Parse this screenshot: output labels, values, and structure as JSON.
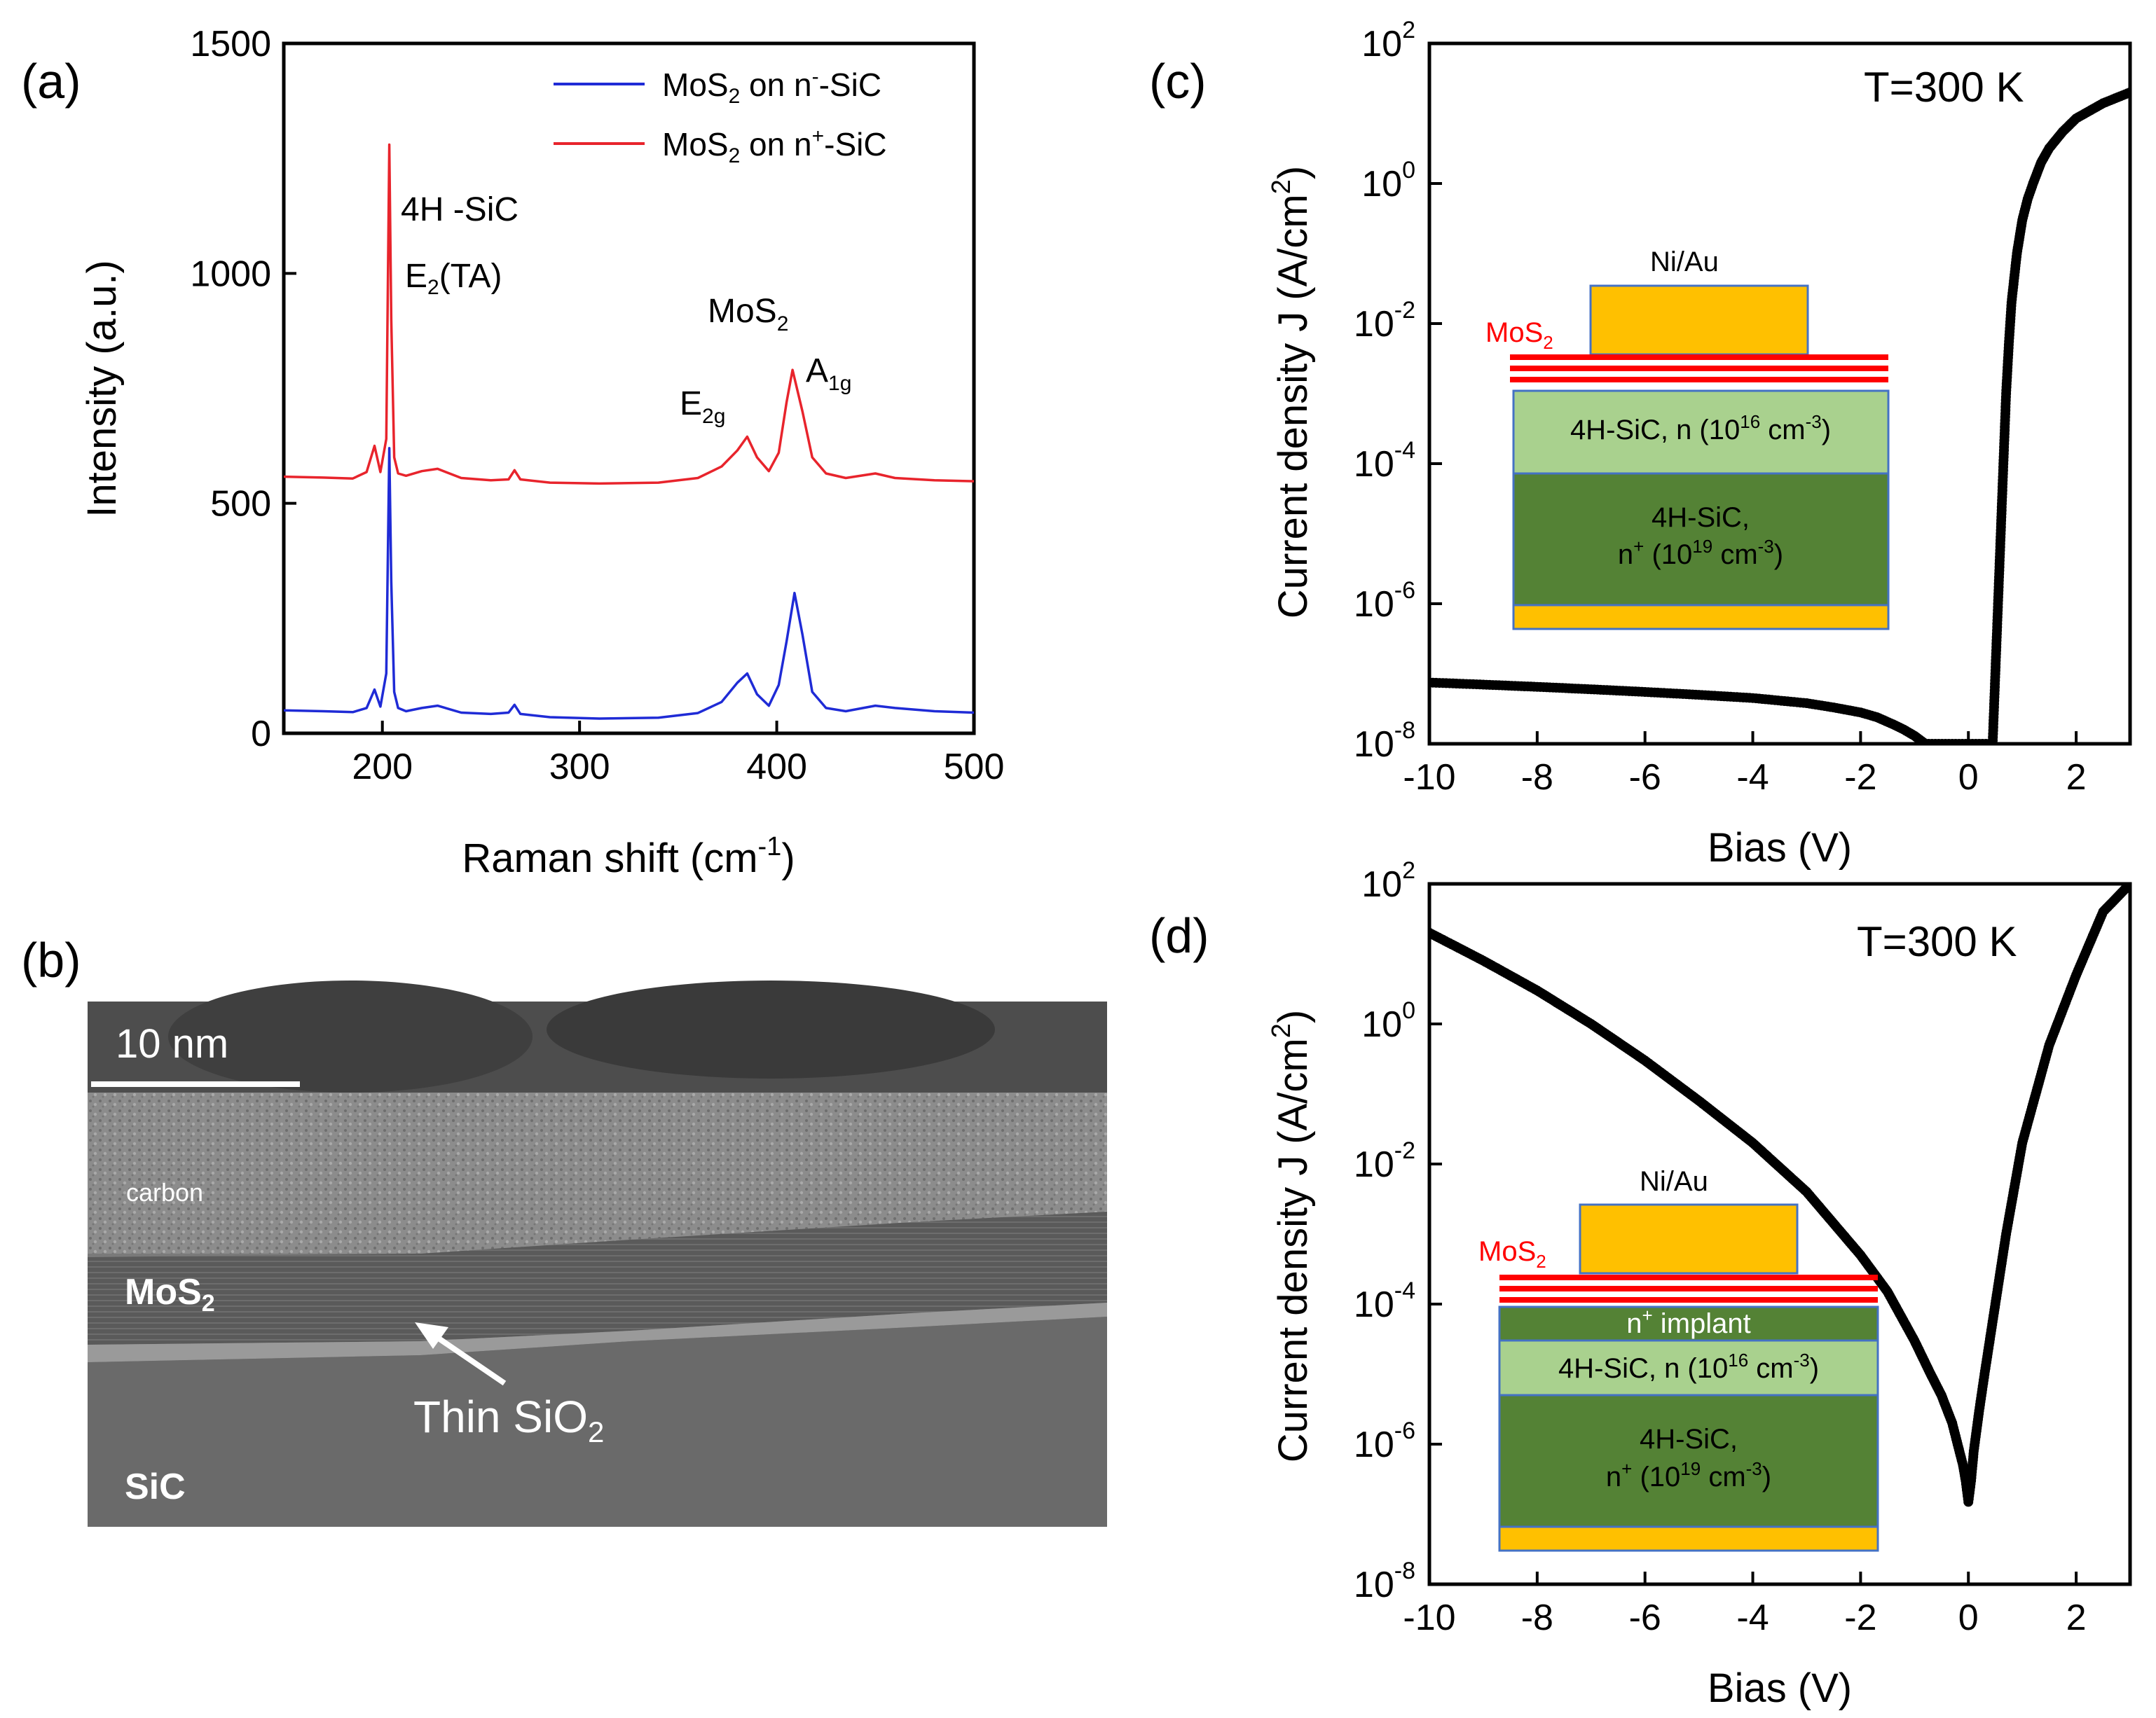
{
  "panels": {
    "a": "(a)",
    "b": "(b)",
    "c": "(c)",
    "d": "(d)"
  },
  "colors": {
    "blue_series": "#1f2bd6",
    "red_series": "#e8242c",
    "gold_contact": "#ffc000",
    "green_light": "#a9d18e",
    "green_dark": "#548235",
    "mos2_red": "#ff0000",
    "contact_border": "#4472c4"
  },
  "raman": {
    "ylabel": "Intensity (a.u.)",
    "xlabel_main": "Raman shift (cm",
    "xlabel_sup": "-1",
    "xlabel_end": ")",
    "legend": [
      {
        "pre": "MoS",
        "sub": "2",
        "mid": " on n",
        "sup": "-",
        "post": "-SiC"
      },
      {
        "pre": "MoS",
        "sub": "2",
        "mid": " on n",
        "sup": "+",
        "post": "-SiC"
      }
    ],
    "annotations": {
      "sic_line1": "4H -SiC",
      "e2ta_pre": "E",
      "e2ta_sub": "2",
      "e2ta_post": "(TA)",
      "mos2_pre": "MoS",
      "mos2_sub": "2",
      "e2g_pre": "E",
      "e2g_sub": "2g",
      "a1g_pre": "A",
      "a1g_sub": "1g"
    }
  },
  "tem": {
    "scale_bar": "10 nm",
    "carbon": "carbon",
    "mos2": "MoS",
    "mos2_sub": "2",
    "sio2_pre": "Thin SiO",
    "sio2_sub": "2",
    "sic": "SiC"
  },
  "jv_common": {
    "xlabel": "Bias (V)",
    "ylabel_main": "Current density J (A/cm",
    "ylabel_sup": "2",
    "ylabel_end": ")",
    "temperature": "T=300 K"
  },
  "inset_c": {
    "contact": "Ni/Au",
    "mos2": "MoS",
    "mos2_sub": "2",
    "layer1_pre": "4H-SiC, n (10",
    "layer1_sup": "16",
    "layer1_mid": " cm",
    "layer1_sup2": "-3",
    "layer1_post": ")",
    "layer2_line1": "4H-SiC,",
    "layer2_pre": "n",
    "layer2_sup": "+",
    "layer2_mid": " (10",
    "layer2_sup2": "19",
    "layer2_mid2": " cm",
    "layer2_sup3": "-3",
    "layer2_post": ")"
  },
  "inset_d": {
    "contact": "Ni/Au",
    "mos2": "MoS",
    "mos2_sub": "2",
    "implant_pre": "n",
    "implant_sup": "+",
    "implant_post": " implant",
    "layer1_pre": "4H-SiC, n (10",
    "layer1_sup": "16",
    "layer1_mid": " cm",
    "layer1_sup2": "-3",
    "layer1_post": ")",
    "layer2_line1": "4H-SiC,",
    "layer2_pre": "n",
    "layer2_sup": "+",
    "layer2_mid": " (10",
    "layer2_sup2": "19",
    "layer2_mid2": " cm",
    "layer2_sup3": "-3",
    "layer2_post": ")"
  },
  "chart_data": [
    {
      "id": "a",
      "type": "line",
      "title": "",
      "xlabel": "Raman shift (cm-1)",
      "ylabel": "Intensity (a.u.)",
      "xlim": [
        150,
        500
      ],
      "ylim": [
        0,
        1500
      ],
      "xticks": [
        200,
        300,
        400,
        500
      ],
      "yticks": [
        0,
        500,
        1000,
        1500
      ],
      "legend_position": "top-right",
      "series": [
        {
          "name": "MoS2 on n--SiC",
          "color": "#1f2bd6",
          "x": [
            150,
            170,
            185,
            192,
            196,
            199,
            202,
            203.5,
            204.5,
            206,
            208,
            212,
            220,
            228,
            240,
            255,
            264,
            267,
            270,
            285,
            310,
            340,
            360,
            372,
            380,
            385,
            390,
            396,
            401,
            405,
            409,
            413,
            418,
            425,
            435,
            450,
            460,
            480,
            500
          ],
          "y": [
            50,
            48,
            46,
            55,
            95,
            58,
            130,
            620,
            330,
            90,
            55,
            48,
            55,
            60,
            45,
            42,
            45,
            62,
            42,
            35,
            32,
            34,
            44,
            68,
            110,
            130,
            85,
            60,
            105,
            200,
            305,
            215,
            90,
            55,
            48,
            60,
            55,
            48,
            45
          ]
        },
        {
          "name": "MoS2 on n+-SiC",
          "color": "#e8242c",
          "x": [
            150,
            170,
            185,
            192,
            196,
            199,
            202,
            203.5,
            204.5,
            206,
            208,
            212,
            220,
            228,
            240,
            255,
            264,
            267,
            270,
            285,
            310,
            340,
            360,
            372,
            380,
            385,
            390,
            396,
            401,
            405,
            408,
            413,
            418,
            425,
            435,
            450,
            460,
            480,
            500
          ],
          "y": [
            558,
            556,
            554,
            568,
            625,
            568,
            640,
            1280,
            900,
            600,
            565,
            560,
            570,
            575,
            555,
            550,
            552,
            572,
            552,
            545,
            543,
            545,
            555,
            580,
            615,
            645,
            600,
            570,
            610,
            720,
            790,
            700,
            600,
            565,
            555,
            565,
            555,
            550,
            548
          ]
        }
      ],
      "annotations": [
        "4H -SiC",
        "E2(TA)",
        "MoS2",
        "E2g",
        "A1g"
      ]
    },
    {
      "id": "c",
      "type": "scatter",
      "title": "",
      "xlabel": "Bias (V)",
      "ylabel": "Current density J (A/cm2)",
      "xlim": [
        -10,
        3
      ],
      "ylim": [
        1e-08,
        100
      ],
      "yscale": "log",
      "xticks": [
        -10,
        -8,
        -6,
        -4,
        -2,
        0,
        2
      ],
      "yticks": [
        1e-08,
        1e-06,
        0.0001,
        0.01,
        1,
        100
      ],
      "series": [
        {
          "name": "",
          "color": "#000000",
          "x": [
            -10,
            -9,
            -8,
            -7,
            -6,
            -5,
            -4,
            -3,
            -2.5,
            -2,
            -1.7,
            -1.4,
            -1.2,
            -1.0,
            -0.8,
            0.45,
            0.5,
            0.55,
            0.6,
            0.65,
            0.7,
            0.75,
            0.8,
            0.9,
            1.0,
            1.1,
            1.2,
            1.35,
            1.5,
            1.75,
            2.0,
            2.5,
            3.0
          ],
          "y": [
            7.5e-08,
            7e-08,
            6.5e-08,
            6e-08,
            5.5e-08,
            5e-08,
            4.5e-08,
            3.8e-08,
            3.3e-08,
            2.8e-08,
            2.4e-08,
            1.9e-08,
            1.6e-08,
            1.3e-08,
            1e-08,
            1e-08,
            1e-07,
            1e-06,
            1e-05,
            0.0001,
            0.001,
            0.005,
            0.02,
            0.1,
            0.3,
            0.6,
            1.0,
            2.0,
            3.2,
            5.5,
            8.5,
            14,
            20
          ]
        }
      ]
    },
    {
      "id": "d",
      "type": "scatter",
      "title": "",
      "xlabel": "Bias (V)",
      "ylabel": "Current density J (A/cm2)",
      "xlim": [
        -10,
        3
      ],
      "ylim": [
        1e-08,
        100
      ],
      "yscale": "log",
      "xticks": [
        -10,
        -8,
        -6,
        -4,
        -2,
        0,
        2
      ],
      "yticks": [
        1e-08,
        1e-06,
        0.0001,
        0.01,
        1,
        100
      ],
      "series": [
        {
          "name": "",
          "color": "#000000",
          "x": [
            -10,
            -9,
            -8,
            -7,
            -6,
            -5,
            -4,
            -3,
            -2,
            -1.5,
            -1,
            -0.7,
            -0.5,
            -0.3,
            -0.2,
            -0.1,
            -0.05,
            0,
            0.05,
            0.1,
            0.2,
            0.3,
            0.5,
            0.7,
            1,
            1.5,
            2,
            2.5,
            3
          ],
          "y": [
            20,
            8,
            3,
            1,
            0.3,
            0.08,
            0.02,
            0.004,
            0.0005,
            0.00015,
            3e-05,
            1e-05,
            5e-06,
            2e-06,
            1e-06,
            5e-07,
            3e-07,
            1.5e-07,
            3e-07,
            8e-07,
            3e-06,
            1e-05,
            0.0001,
            0.001,
            0.02,
            0.5,
            5,
            40,
            100
          ]
        }
      ]
    }
  ]
}
